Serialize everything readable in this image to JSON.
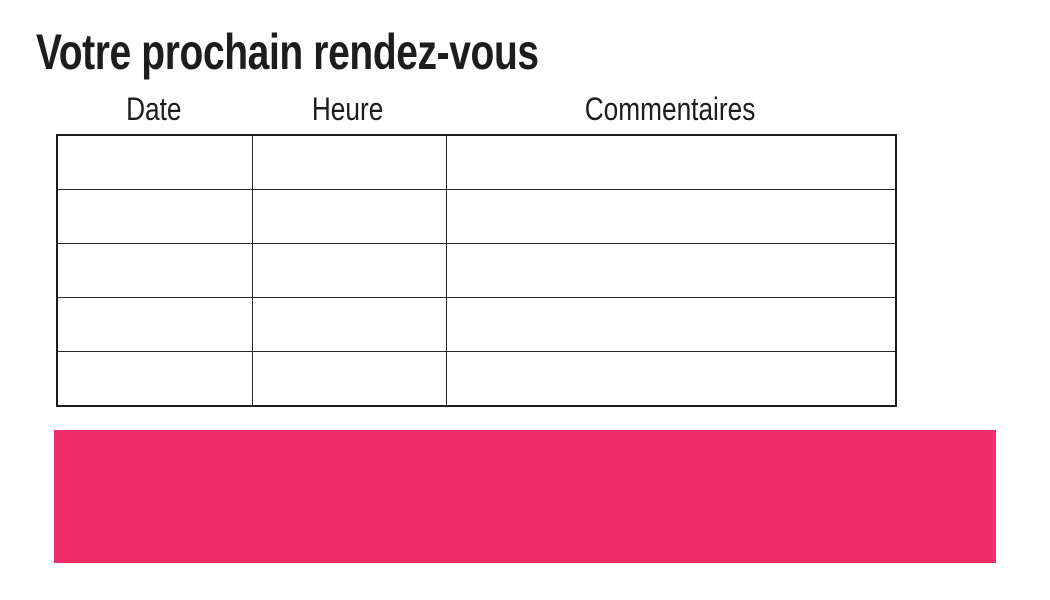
{
  "page": {
    "title": "Votre prochain rendez-vous"
  },
  "table": {
    "headers": [
      "Date",
      "Heure",
      "Commentaires"
    ],
    "rows": [
      [
        "",
        "",
        ""
      ],
      [
        "",
        "",
        ""
      ],
      [
        "",
        "",
        ""
      ],
      [
        "",
        "",
        ""
      ],
      [
        "",
        "",
        ""
      ]
    ]
  },
  "banner": {
    "accent_color": "#EE2D69"
  }
}
